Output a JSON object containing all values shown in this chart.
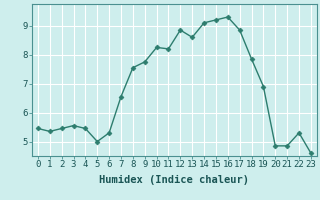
{
  "x": [
    0,
    1,
    2,
    3,
    4,
    5,
    6,
    7,
    8,
    9,
    10,
    11,
    12,
    13,
    14,
    15,
    16,
    17,
    18,
    19,
    20,
    21,
    22,
    23
  ],
  "y": [
    5.45,
    5.35,
    5.45,
    5.55,
    5.45,
    5.0,
    5.3,
    6.55,
    7.55,
    7.75,
    8.25,
    8.2,
    8.85,
    8.6,
    9.1,
    9.2,
    9.3,
    8.85,
    7.85,
    6.9,
    4.85,
    4.85,
    5.3,
    4.6
  ],
  "line_color": "#2d7d6e",
  "marker": "D",
  "markersize": 2.5,
  "linewidth": 1.0,
  "xlabel": "Humidex (Indice chaleur)",
  "xlim": [
    -0.5,
    23.5
  ],
  "ylim": [
    4.5,
    9.75
  ],
  "yticks": [
    5,
    6,
    7,
    8,
    9
  ],
  "xticks": [
    0,
    1,
    2,
    3,
    4,
    5,
    6,
    7,
    8,
    9,
    10,
    11,
    12,
    13,
    14,
    15,
    16,
    17,
    18,
    19,
    20,
    21,
    22,
    23
  ],
  "bg_color": "#ceeeed",
  "grid_color": "#ffffff",
  "axes_color": "#4a9090",
  "font_color": "#1a5555",
  "xlabel_fontsize": 7.5,
  "tick_fontsize": 6.5
}
